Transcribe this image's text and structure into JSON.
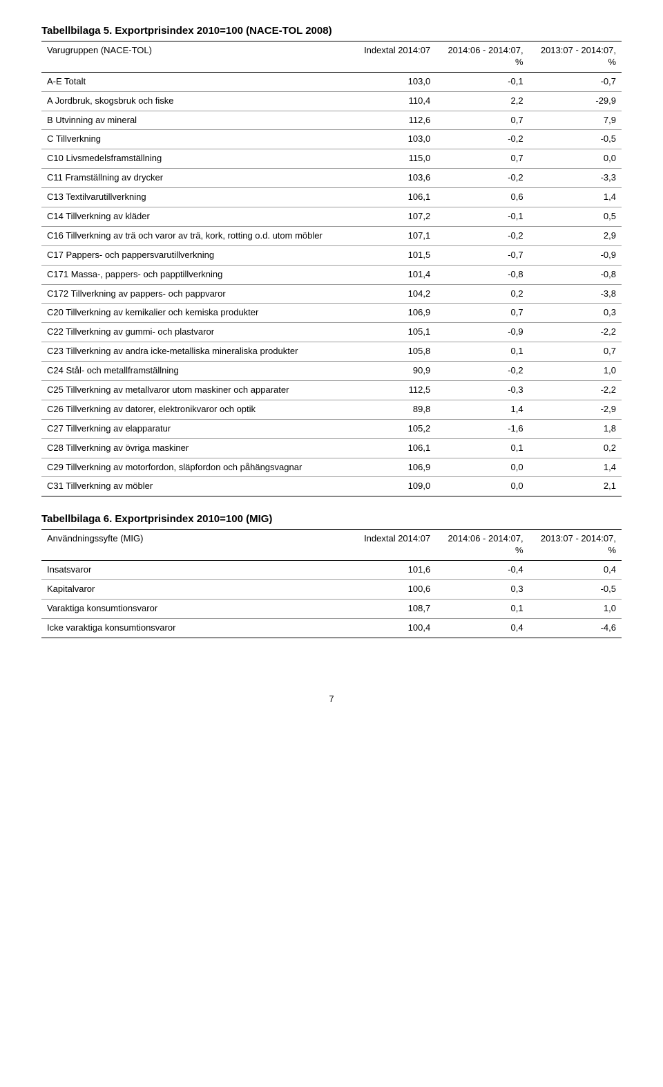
{
  "table5": {
    "title": "Tabellbilaga 5. Exportprisindex 2010=100 (NACE-TOL 2008)",
    "columns": [
      "Varugruppen (NACE-TOL)",
      "Indextal 2014:07",
      "2014:06 - 2014:07, %",
      "2013:07 - 2014:07, %"
    ],
    "rows": [
      [
        "A-E Totalt",
        "103,0",
        "-0,1",
        "-0,7"
      ],
      [
        "A Jordbruk, skogsbruk och fiske",
        "110,4",
        "2,2",
        "-29,9"
      ],
      [
        "B Utvinning av mineral",
        "112,6",
        "0,7",
        "7,9"
      ],
      [
        "C Tillverkning",
        "103,0",
        "-0,2",
        "-0,5"
      ],
      [
        "C10 Livsmedelsframställning",
        "115,0",
        "0,7",
        "0,0"
      ],
      [
        "C11 Framställning av drycker",
        "103,6",
        "-0,2",
        "-3,3"
      ],
      [
        "C13 Textilvarutillverkning",
        "106,1",
        "0,6",
        "1,4"
      ],
      [
        "C14 Tillverkning av kläder",
        "107,2",
        "-0,1",
        "0,5"
      ],
      [
        "C16 Tillverkning av trä och varor av trä, kork, rotting o.d. utom möbler",
        "107,1",
        "-0,2",
        "2,9"
      ],
      [
        "C17 Pappers- och pappersvarutillverkning",
        "101,5",
        "-0,7",
        "-0,9"
      ],
      [
        "C171 Massa-, pappers- och papptillverkning",
        "101,4",
        "-0,8",
        "-0,8"
      ],
      [
        "C172 Tillverkning av pappers- och pappvaror",
        "104,2",
        "0,2",
        "-3,8"
      ],
      [
        "C20 Tillverkning av kemikalier och kemiska produkter",
        "106,9",
        "0,7",
        "0,3"
      ],
      [
        "C22 Tillverkning av gummi- och plastvaror",
        "105,1",
        "-0,9",
        "-2,2"
      ],
      [
        "C23 Tillverkning av andra icke-metalliska mineraliska produkter",
        "105,8",
        "0,1",
        "0,7"
      ],
      [
        "C24 Stål- och metallframställning",
        "90,9",
        "-0,2",
        "1,0"
      ],
      [
        "C25 Tillverkning av metallvaror utom maskiner och apparater",
        "112,5",
        "-0,3",
        "-2,2"
      ],
      [
        "C26 Tillverkning av datorer, elektronikvaror och optik",
        "89,8",
        "1,4",
        "-2,9"
      ],
      [
        "C27 Tillverkning av elapparatur",
        "105,2",
        "-1,6",
        "1,8"
      ],
      [
        "C28 Tillverkning av övriga maskiner",
        "106,1",
        "0,1",
        "0,2"
      ],
      [
        "C29 Tillverkning av motorfordon, släpfordon och påhängsvagnar",
        "106,9",
        "0,0",
        "1,4"
      ],
      [
        "C31 Tillverkning av möbler",
        "109,0",
        "0,0",
        "2,1"
      ]
    ]
  },
  "table6": {
    "title": "Tabellbilaga 6. Exportprisindex 2010=100 (MIG)",
    "columns": [
      "Användningssyfte (MIG)",
      "Indextal 2014:07",
      "2014:06 - 2014:07, %",
      "2013:07 - 2014:07, %"
    ],
    "rows": [
      [
        "Insatsvaror",
        "101,6",
        "-0,4",
        "0,4"
      ],
      [
        "Kapitalvaror",
        "100,6",
        "0,3",
        "-0,5"
      ],
      [
        "Varaktiga konsumtionsvaror",
        "108,7",
        "0,1",
        "1,0"
      ],
      [
        "Icke varaktiga konsumtionsvaror",
        "100,4",
        "0,4",
        "-4,6"
      ]
    ]
  },
  "page_number": "7"
}
